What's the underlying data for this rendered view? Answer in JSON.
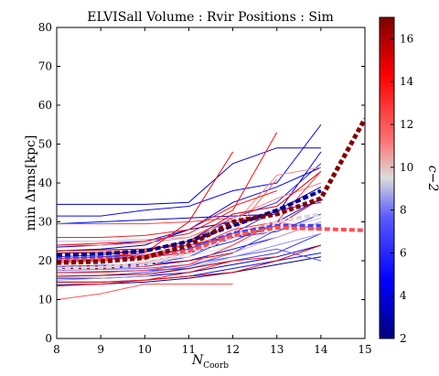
{
  "chart_data": {
    "type": "line",
    "title": "ELVISall    Volume : Rvir    Positions : Sim",
    "xlabel_main": "N",
    "xlabel_sub": "Coorb",
    "ylabel": "min Δrms[kpc]",
    "colorbar_label": "c−2",
    "x_ticks": [
      "8",
      "9",
      "10",
      "11",
      "12",
      "13",
      "14",
      "15"
    ],
    "y_ticks": [
      "0",
      "10",
      "20",
      "30",
      "40",
      "50",
      "60",
      "70",
      "80"
    ],
    "cb_ticks": [
      "2",
      "4",
      "6",
      "8",
      "10",
      "12",
      "14",
      "16"
    ],
    "xlim": [
      8,
      15
    ],
    "ylim": [
      0,
      80
    ],
    "clim": [
      2,
      17
    ],
    "grid": false,
    "colormap": {
      "stops": [
        {
          "v": 0.0,
          "color": "#00007f"
        },
        {
          "v": 0.18,
          "color": "#0000ff"
        },
        {
          "v": 0.38,
          "color": "#5b5bff"
        },
        {
          "v": 0.5,
          "color": "#dcdcdc"
        },
        {
          "v": 0.62,
          "color": "#ff7070"
        },
        {
          "v": 0.82,
          "color": "#ff0000"
        },
        {
          "v": 1.0,
          "color": "#7f0000"
        }
      ]
    },
    "series": [
      {
        "c": 3.5,
        "x": [
          8,
          9,
          10,
          11,
          12,
          13,
          14
        ],
        "y": [
          34.5,
          34.5,
          34.5,
          35,
          45,
          49,
          49
        ]
      },
      {
        "c": 5.0,
        "x": [
          8,
          9,
          10,
          11,
          12,
          13,
          14
        ],
        "y": [
          31.5,
          31.5,
          33,
          34,
          38,
          40,
          55
        ]
      },
      {
        "c": 4.0,
        "x": [
          8,
          9,
          10,
          11,
          12,
          13,
          14
        ],
        "y": [
          29.5,
          30,
          30.5,
          31,
          31.5,
          32,
          48
        ]
      },
      {
        "c": 3.0,
        "x": [
          8,
          9,
          10,
          11,
          12,
          13,
          14
        ],
        "y": [
          22.5,
          23,
          24,
          28,
          30,
          33,
          39
        ]
      },
      {
        "c": 6.0,
        "x": [
          8,
          9,
          10,
          11,
          12,
          13,
          14
        ],
        "y": [
          21,
          21.5,
          22.5,
          25,
          31,
          35,
          45
        ]
      },
      {
        "c": 5.5,
        "x": [
          8,
          9,
          10,
          11,
          12,
          13,
          14
        ],
        "y": [
          20,
          20.5,
          21,
          22,
          25,
          30,
          36
        ]
      },
      {
        "c": 4.5,
        "x": [
          8,
          9,
          10,
          11,
          12,
          13,
          14
        ],
        "y": [
          18.5,
          18.8,
          19,
          20,
          23,
          26,
          30
        ]
      },
      {
        "c": 6.5,
        "x": [
          8,
          9,
          10,
          11,
          12,
          13,
          14
        ],
        "y": [
          17,
          17.2,
          17.5,
          18,
          20,
          22,
          27
        ]
      },
      {
        "c": 7.0,
        "x": [
          8,
          9,
          10,
          11,
          12,
          13,
          14
        ],
        "y": [
          16,
          16.2,
          17,
          18.5,
          22,
          28,
          31
        ]
      },
      {
        "c": 3.8,
        "x": [
          8,
          9,
          10,
          11,
          12,
          13,
          14
        ],
        "y": [
          15.5,
          15.5,
          16,
          17,
          19,
          21,
          24
        ]
      },
      {
        "c": 5.2,
        "x": [
          8,
          9,
          10,
          11,
          12,
          13,
          14
        ],
        "y": [
          14.5,
          14.5,
          15,
          16,
          18,
          20,
          22
        ]
      },
      {
        "c": 2.5,
        "x": [
          8,
          9,
          10,
          11,
          12,
          13,
          14
        ],
        "y": [
          13.8,
          14,
          14.5,
          15.5,
          17,
          19,
          21
        ]
      },
      {
        "c": 6.2,
        "x": [
          8,
          9,
          10,
          11,
          12,
          13,
          14
        ],
        "y": [
          18,
          18,
          19,
          21,
          26,
          27.5,
          32
        ]
      },
      {
        "c": 4.2,
        "x": [
          8,
          9,
          10,
          11,
          12,
          13,
          14
        ],
        "y": [
          23.5,
          24,
          25,
          28,
          35,
          39,
          44
        ]
      },
      {
        "c": 5.8,
        "x": [
          8,
          9,
          10,
          11,
          12,
          13,
          14
        ],
        "y": [
          20.5,
          21,
          21.5,
          23,
          27,
          33,
          35
        ]
      },
      {
        "c": 7.5,
        "x": [
          8,
          9,
          10,
          11,
          12,
          13,
          14
        ],
        "y": [
          17.5,
          17.8,
          18,
          19,
          21,
          23,
          20
        ]
      },
      {
        "c": 9.0,
        "x": [
          8,
          9,
          10,
          11,
          12,
          13,
          14
        ],
        "y": [
          25,
          25,
          25.5,
          26,
          30,
          33,
          38
        ]
      },
      {
        "c": 9.5,
        "x": [
          8,
          9,
          10,
          11,
          12,
          13,
          14
        ],
        "y": [
          19,
          19.5,
          20,
          21,
          24,
          28,
          31
        ]
      },
      {
        "c": 10.2,
        "x": [
          8,
          9,
          10,
          11,
          12,
          13,
          14
        ],
        "y": [
          16.5,
          17,
          17.5,
          19,
          22,
          26,
          30
        ]
      },
      {
        "c": 10.8,
        "x": [
          8,
          9,
          10,
          11,
          12,
          13,
          14
        ],
        "y": [
          22,
          22.5,
          23,
          25,
          29,
          42,
          44
        ]
      },
      {
        "c": 8.5,
        "x": [
          8,
          9,
          10,
          11,
          12,
          13,
          14
        ],
        "y": [
          15,
          15.5,
          16,
          18,
          21,
          24,
          27
        ]
      },
      {
        "c": 11.0,
        "x": [
          8,
          9,
          10,
          11,
          12,
          13,
          14
        ],
        "y": [
          24,
          24,
          24.5,
          26,
          31,
          36,
          40
        ]
      },
      {
        "c": 11.5,
        "x": [
          8,
          9,
          10,
          11,
          12,
          13
        ],
        "y": [
          18,
          18.5,
          19.5,
          22,
          27,
          41
        ]
      },
      {
        "c": 12.5,
        "x": [
          8,
          9,
          10,
          11,
          12
        ],
        "y": [
          29.5,
          29.5,
          29.5,
          30,
          31
        ]
      },
      {
        "c": 13.5,
        "x": [
          8,
          9,
          10,
          11,
          12,
          13
        ],
        "y": [
          26,
          26,
          26.5,
          28,
          34,
          38
        ]
      },
      {
        "c": 14.0,
        "x": [
          8,
          9,
          10,
          11,
          12,
          13
        ],
        "y": [
          24,
          24.5,
          25,
          27,
          33,
          53
        ]
      },
      {
        "c": 15.0,
        "x": [
          8,
          9,
          10,
          11,
          12,
          13,
          14
        ],
        "y": [
          22,
          22,
          22.5,
          25,
          32,
          34,
          43
        ]
      },
      {
        "c": 14.5,
        "x": [
          8,
          9,
          10,
          11,
          12
        ],
        "y": [
          20.5,
          21,
          22,
          30,
          48
        ]
      },
      {
        "c": 13.0,
        "x": [
          8,
          9,
          10,
          11,
          12,
          13
        ],
        "y": [
          19.5,
          20,
          21,
          23,
          28,
          30
        ]
      },
      {
        "c": 15.5,
        "x": [
          8,
          9,
          10,
          11,
          12
        ],
        "y": [
          18,
          18,
          18.5,
          20,
          22
        ]
      },
      {
        "c": 12.8,
        "x": [
          8,
          9,
          10,
          11,
          12,
          13,
          14
        ],
        "y": [
          17,
          17,
          17.5,
          19,
          24,
          30,
          43
        ]
      },
      {
        "c": 16.0,
        "x": [
          8,
          9,
          10,
          11,
          12
        ],
        "y": [
          16,
          16.2,
          16.5,
          18,
          20
        ]
      },
      {
        "c": 14.8,
        "x": [
          8,
          9,
          10,
          11,
          12,
          13,
          14
        ],
        "y": [
          14.5,
          14.5,
          15,
          16,
          17,
          20,
          24
        ]
      },
      {
        "c": 12.0,
        "x": [
          8,
          9,
          10,
          11,
          12
        ],
        "y": [
          10,
          11.5,
          14,
          14,
          14
        ]
      },
      {
        "c": 15.8,
        "x": [
          8,
          9,
          10,
          11,
          12,
          13,
          14
        ],
        "y": [
          22.5,
          22.8,
          23,
          24,
          26,
          29,
          36
        ]
      },
      {
        "c": 13.8,
        "x": [
          8,
          9,
          10,
          11,
          12,
          13
        ],
        "y": [
          13.5,
          14,
          15,
          17,
          20,
          21
        ]
      },
      {
        "c": 11.8,
        "x": [
          8,
          9,
          10,
          11,
          12,
          13,
          14
        ],
        "y": [
          20,
          20.5,
          21.5,
          24,
          27,
          30,
          28
        ]
      }
    ],
    "mean_series": [
      {
        "style": "dashed-dark-red",
        "c": 16.9,
        "x": [
          8,
          9,
          10,
          11,
          12,
          13,
          14,
          15
        ],
        "y": [
          19.5,
          19.8,
          20.8,
          24,
          30,
          32,
          36,
          56.5
        ]
      },
      {
        "style": "dashed-blue",
        "c": 2.3,
        "x": [
          8,
          9,
          10,
          11,
          12,
          13,
          14
        ],
        "y": [
          21.5,
          21.8,
          22.5,
          25,
          29,
          33,
          38
        ]
      },
      {
        "style": "dashed-gray",
        "c": 9.6,
        "x": [
          8,
          9,
          10,
          11,
          12,
          13,
          14
        ],
        "y": [
          18,
          18.3,
          19,
          22,
          26,
          30,
          32
        ]
      },
      {
        "style": "dashed-light-red",
        "c": 12.2,
        "x": [
          8,
          9,
          10,
          11,
          12,
          13,
          14,
          15
        ],
        "y": [
          20,
          20.2,
          21,
          22.5,
          26.5,
          28.5,
          28.2,
          27.8
        ]
      },
      {
        "style": "dashed-light-blue",
        "c": 6.8,
        "x": [
          8,
          9,
          10,
          11,
          12,
          13,
          14
        ],
        "y": [
          20.5,
          20.8,
          21,
          23,
          27,
          29,
          29
        ]
      }
    ]
  }
}
